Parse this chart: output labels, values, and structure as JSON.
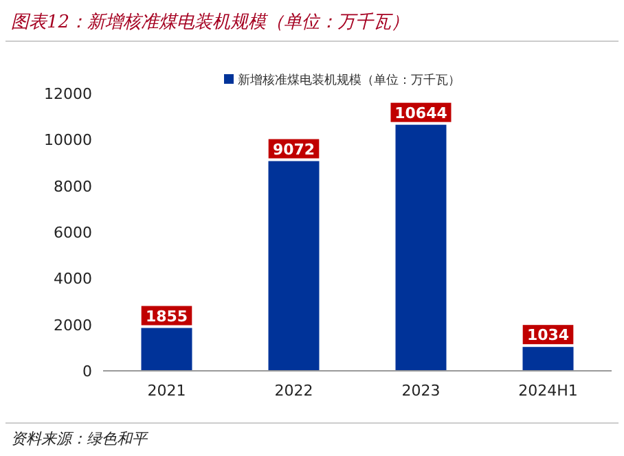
{
  "chart_data": {
    "type": "bar",
    "title": "图表12：新增核准煤电装机规模（单位：万千瓦）",
    "annotations": [
      "资料来源：绿色和平"
    ],
    "categories": [
      "2021",
      "2022",
      "2023",
      "2024H1"
    ],
    "series": [
      {
        "name": "新增核准煤电装机规模（单位：万千瓦）",
        "color": "#003399",
        "values": [
          1855,
          9072,
          10644,
          1034
        ]
      }
    ],
    "ylim": [
      0,
      12000
    ],
    "yticks": [
      0,
      2000,
      4000,
      6000,
      8000,
      10000,
      12000
    ],
    "grid": false,
    "legend": "top",
    "data_labels": true
  }
}
